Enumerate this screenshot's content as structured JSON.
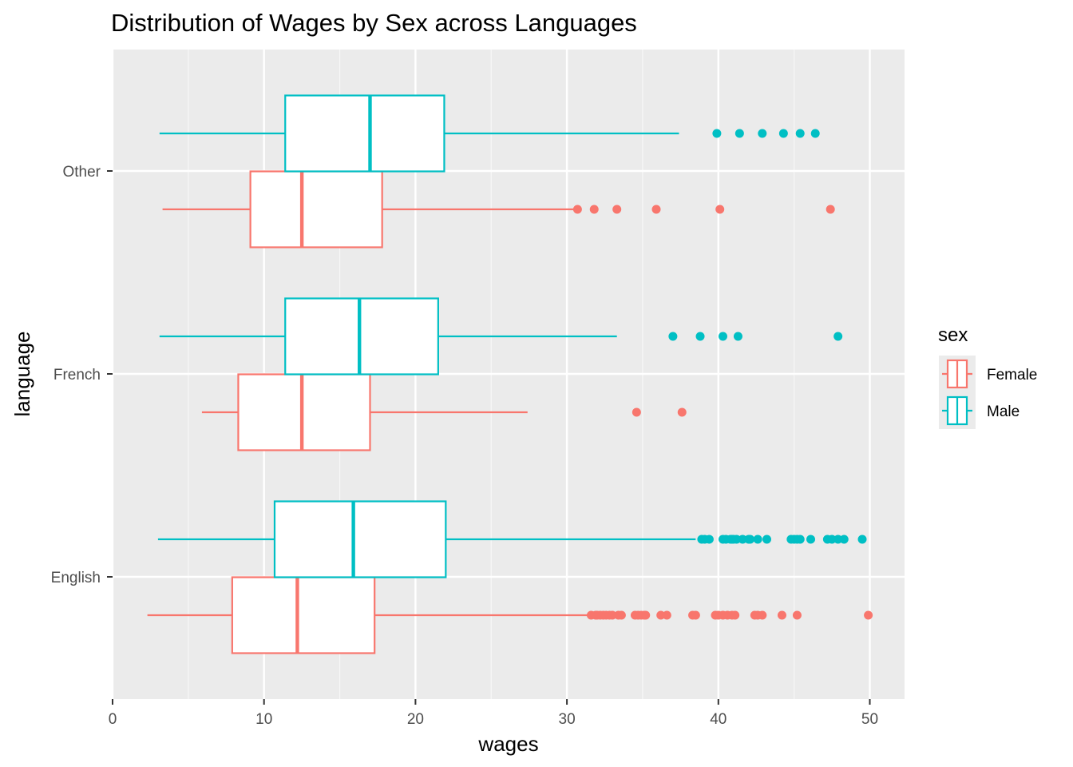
{
  "chart_data": {
    "type": "boxplot",
    "orientation": "horizontal",
    "title": "Distribution of Wages by Sex across Languages",
    "xlabel": "wages",
    "ylabel": "language",
    "xlim": [
      0,
      52.2
    ],
    "x_ticks": [
      0,
      10,
      20,
      30,
      40,
      50
    ],
    "x_tick_labels": [
      "0",
      "10",
      "20",
      "30",
      "40",
      "50"
    ],
    "categories": [
      "English",
      "French",
      "Other"
    ],
    "grid": true,
    "legend": {
      "title": "sex",
      "position": "right",
      "entries": [
        {
          "name": "Female",
          "color": "#F8766D"
        },
        {
          "name": "Male",
          "color": "#00BFC4"
        }
      ]
    },
    "series": [
      {
        "name": "Female",
        "color": "#F8766D",
        "boxes": {
          "English": {
            "whisker_low": 2.3,
            "q1": 7.9,
            "median": 12.2,
            "q3": 17.3,
            "whisker_high": 31.5,
            "outliers": [
              31.6,
              31.9,
              32.0,
              32.2,
              32.4,
              32.6,
              32.8,
              33.0,
              33.4,
              33.6,
              34.5,
              34.7,
              34.9,
              35.1,
              35.2,
              36.2,
              36.6,
              38.3,
              38.5,
              39.8,
              40.0,
              40.3,
              40.6,
              40.9,
              41.1,
              42.4,
              42.6,
              42.9,
              44.2,
              45.2,
              49.9
            ]
          },
          "French": {
            "whisker_low": 5.9,
            "q1": 8.3,
            "median": 12.5,
            "q3": 17.0,
            "whisker_high": 27.4,
            "outliers": [
              34.6,
              37.6
            ]
          },
          "Other": {
            "whisker_low": 3.3,
            "q1": 9.1,
            "median": 12.5,
            "q3": 17.8,
            "whisker_high": 30.5,
            "outliers": [
              30.7,
              31.8,
              33.3,
              35.9,
              40.1,
              47.4
            ]
          }
        }
      },
      {
        "name": "Male",
        "color": "#00BFC4",
        "boxes": {
          "English": {
            "whisker_low": 3.0,
            "q1": 10.7,
            "median": 15.9,
            "q3": 22.0,
            "whisker_high": 38.5,
            "outliers": [
              38.9,
              39.1,
              39.4,
              40.3,
              40.5,
              40.8,
              40.9,
              41.0,
              41.2,
              41.6,
              42.0,
              42.1,
              42.6,
              43.2,
              44.8,
              45.0,
              45.2,
              45.4,
              46.1,
              47.2,
              47.5,
              47.9,
              48.3,
              49.5
            ]
          },
          "French": {
            "whisker_low": 3.1,
            "q1": 11.4,
            "median": 16.3,
            "q3": 21.5,
            "whisker_high": 33.3,
            "outliers": [
              37.0,
              38.8,
              40.3,
              41.3,
              47.9
            ]
          },
          "Other": {
            "whisker_low": 3.1,
            "q1": 11.4,
            "median": 17.0,
            "q3": 21.9,
            "whisker_high": 37.4,
            "outliers": [
              39.9,
              41.4,
              42.9,
              44.3,
              45.4,
              46.4
            ]
          }
        }
      }
    ]
  }
}
